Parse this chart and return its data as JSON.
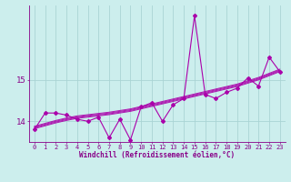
{
  "xlabel": "Windchill (Refroidissement éolien,°C)",
  "background_color": "#cceeed",
  "grid_color": "#aad4d4",
  "line_color": "#aa00aa",
  "x": [
    0,
    1,
    2,
    3,
    4,
    5,
    6,
    7,
    8,
    9,
    10,
    11,
    12,
    13,
    14,
    15,
    16,
    17,
    18,
    19,
    20,
    21,
    22,
    23
  ],
  "y_main": [
    13.8,
    14.2,
    14.2,
    14.15,
    14.05,
    14.0,
    14.1,
    13.6,
    14.05,
    13.55,
    14.35,
    14.45,
    14.0,
    14.4,
    14.55,
    16.55,
    14.65,
    14.55,
    14.7,
    14.8,
    15.05,
    14.85,
    15.55,
    15.2
  ],
  "y_smooth1": [
    13.82,
    13.89,
    13.96,
    14.02,
    14.07,
    14.1,
    14.13,
    14.16,
    14.2,
    14.24,
    14.3,
    14.36,
    14.42,
    14.48,
    14.54,
    14.6,
    14.66,
    14.72,
    14.78,
    14.84,
    14.92,
    15.0,
    15.1,
    15.2
  ],
  "y_smooth2": [
    13.84,
    13.91,
    13.98,
    14.04,
    14.09,
    14.12,
    14.15,
    14.18,
    14.22,
    14.26,
    14.32,
    14.38,
    14.44,
    14.5,
    14.56,
    14.62,
    14.68,
    14.74,
    14.8,
    14.86,
    14.94,
    15.02,
    15.12,
    15.22
  ],
  "y_smooth3": [
    13.86,
    13.93,
    14.0,
    14.06,
    14.11,
    14.14,
    14.17,
    14.2,
    14.24,
    14.28,
    14.34,
    14.4,
    14.46,
    14.52,
    14.58,
    14.64,
    14.7,
    14.76,
    14.82,
    14.88,
    14.96,
    15.04,
    15.14,
    15.24
  ],
  "y_smooth4": [
    13.88,
    13.95,
    14.02,
    14.08,
    14.13,
    14.16,
    14.19,
    14.22,
    14.26,
    14.3,
    14.36,
    14.42,
    14.48,
    14.54,
    14.6,
    14.66,
    14.72,
    14.78,
    14.84,
    14.9,
    14.98,
    15.06,
    15.16,
    15.26
  ],
  "ylim": [
    13.5,
    16.8
  ],
  "yticks": [
    14,
    15
  ],
  "xticks": [
    0,
    1,
    2,
    3,
    4,
    5,
    6,
    7,
    8,
    9,
    10,
    11,
    12,
    13,
    14,
    15,
    16,
    17,
    18,
    19,
    20,
    21,
    22,
    23
  ]
}
